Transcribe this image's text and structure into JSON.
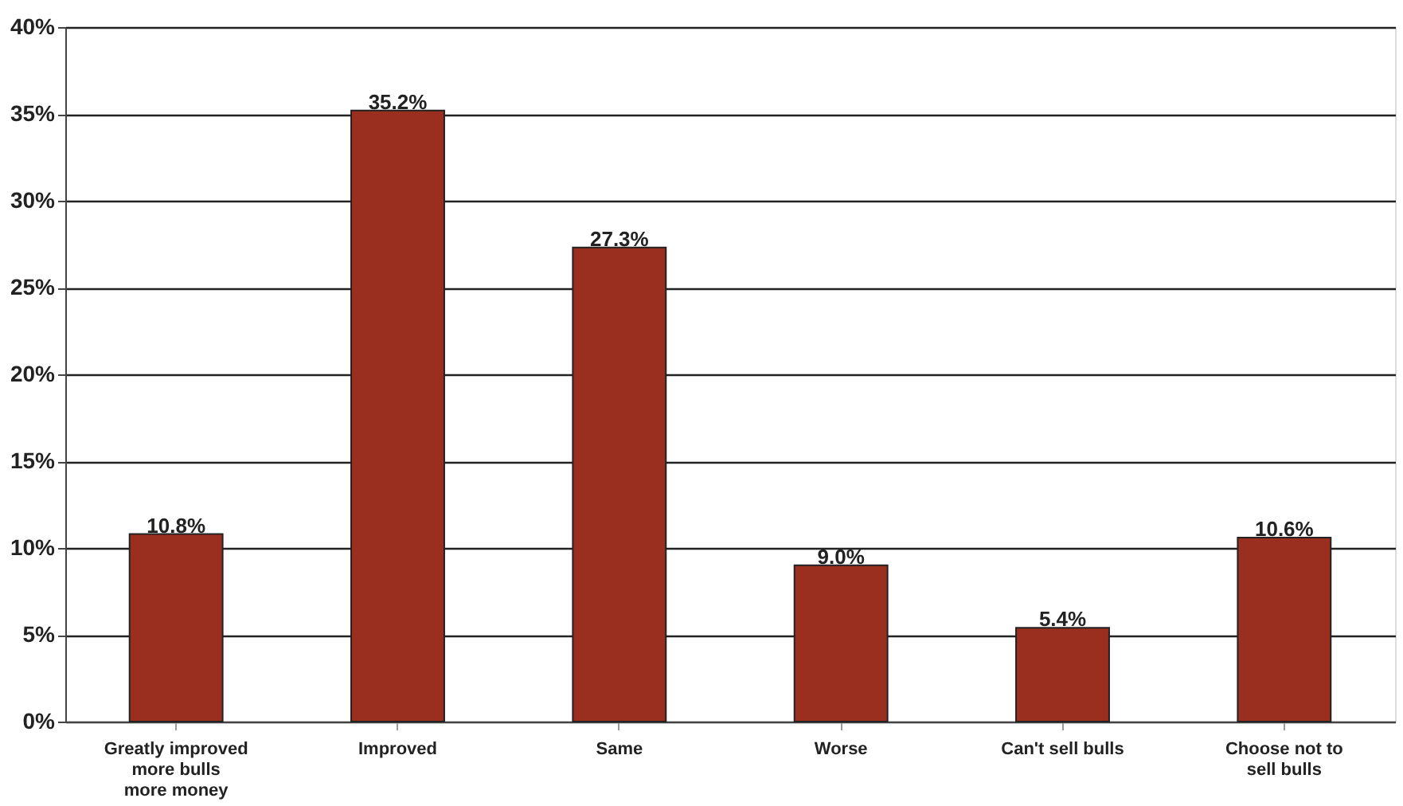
{
  "chart_data": {
    "type": "bar",
    "categories": [
      "Greatly improved\nmore bulls\nmore money",
      "Improved",
      "Same",
      "Worse",
      "Can't sell bulls",
      "Choose not to\nsell bulls"
    ],
    "values": [
      10.8,
      35.2,
      27.3,
      9.0,
      5.4,
      10.6
    ],
    "value_labels": [
      "10.8%",
      "35.2%",
      "27.3%",
      "9.0%",
      "5.4%",
      "10.6%"
    ],
    "color": "#9b2f1f",
    "ylim": [
      0,
      40
    ],
    "yticks": [
      {
        "value": 0,
        "label": "0%"
      },
      {
        "value": 5,
        "label": "5%"
      },
      {
        "value": 10,
        "label": "10%"
      },
      {
        "value": 15,
        "label": "15%"
      },
      {
        "value": 20,
        "label": "20%"
      },
      {
        "value": 25,
        "label": "25%"
      },
      {
        "value": 30,
        "label": "30%"
      },
      {
        "value": 35,
        "label": "35%"
      },
      {
        "value": 40,
        "label": "40%"
      }
    ],
    "grid": "y"
  }
}
